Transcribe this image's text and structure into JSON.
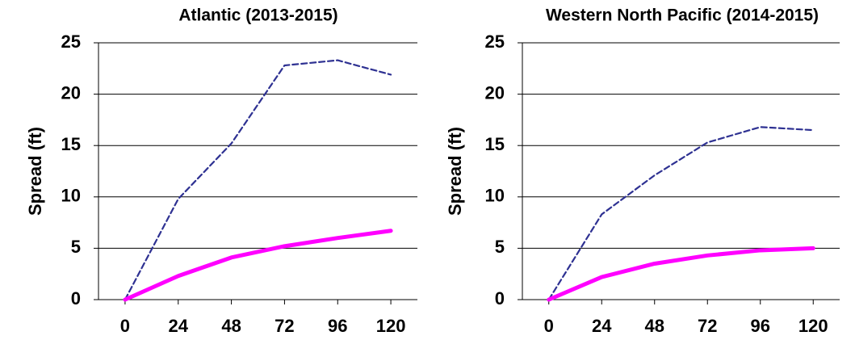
{
  "chart_data": [
    {
      "type": "line",
      "title": "Atlantic  (2013-2015)",
      "y_label": "Spread (ft)",
      "x": [
        0,
        24,
        48,
        72,
        96,
        120
      ],
      "xlim": [
        -12,
        132
      ],
      "xticks": [
        0,
        24,
        48,
        72,
        96,
        120
      ],
      "ylim": [
        0,
        25
      ],
      "yticks": [
        0,
        5,
        10,
        15,
        20,
        25
      ],
      "grid": true,
      "series": [
        {
          "color": "#2e3192",
          "dash": "dashed",
          "values": [
            0,
            9.8,
            15.2,
            22.8,
            23.3,
            21.9
          ]
        },
        {
          "color": "#ff00ff",
          "dash": "solid",
          "values": [
            0,
            2.3,
            4.1,
            5.2,
            6.0,
            6.7
          ]
        }
      ]
    },
    {
      "type": "line",
      "title": "Western North Pacific (2014-2015)",
      "y_label": "Spread (ft)",
      "x": [
        0,
        24,
        48,
        72,
        96,
        120
      ],
      "xlim": [
        -12,
        132
      ],
      "xticks": [
        0,
        24,
        48,
        72,
        96,
        120
      ],
      "ylim": [
        0,
        25
      ],
      "yticks": [
        0,
        5,
        10,
        15,
        20,
        25
      ],
      "grid": true,
      "series": [
        {
          "color": "#2e3192",
          "dash": "dashed",
          "values": [
            0,
            8.3,
            12.1,
            15.3,
            16.8,
            16.5
          ]
        },
        {
          "color": "#ff00ff",
          "dash": "solid",
          "values": [
            0,
            2.2,
            3.5,
            4.3,
            4.8,
            5.0
          ]
        }
      ]
    }
  ]
}
